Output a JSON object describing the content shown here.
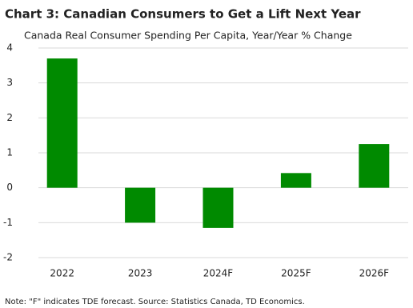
{
  "chart_data": {
    "type": "bar",
    "title": "Chart 3: Canadian Consumers to Get a Lift Next Year",
    "subtitle": "Canada Real Consumer Spending Per Capita, Year/Year % Change",
    "categories": [
      "2022",
      "2023",
      "2024F",
      "2025F",
      "2026F"
    ],
    "values": [
      3.7,
      -1.0,
      -1.15,
      0.42,
      1.25
    ],
    "color": "#008a00",
    "ylim": [
      -2,
      4
    ],
    "yticks": [
      -2,
      -1,
      0,
      1,
      2,
      3,
      4
    ],
    "grid": true,
    "note": "Note: \"F\" indicates TDE forecast. Source: Statistics Canada, TD Economics."
  }
}
